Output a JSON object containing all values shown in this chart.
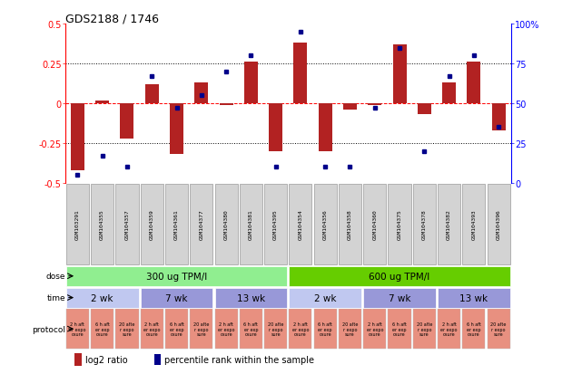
{
  "title": "GDS2188 / 1746",
  "samples": [
    "GSM103291",
    "GSM104355",
    "GSM104357",
    "GSM104359",
    "GSM104361",
    "GSM104377",
    "GSM104380",
    "GSM104381",
    "GSM104395",
    "GSM104354",
    "GSM104356",
    "GSM104358",
    "GSM104360",
    "GSM104375",
    "GSM104378",
    "GSM104382",
    "GSM104393",
    "GSM104396"
  ],
  "log2_ratio": [
    -0.42,
    0.02,
    -0.22,
    0.12,
    -0.32,
    0.13,
    -0.01,
    0.26,
    -0.3,
    0.38,
    -0.3,
    -0.04,
    -0.01,
    0.37,
    -0.07,
    0.13,
    0.26,
    -0.17
  ],
  "percentile": [
    5,
    17,
    10,
    67,
    47,
    55,
    70,
    80,
    10,
    95,
    10,
    10,
    47,
    85,
    20,
    67,
    80,
    35
  ],
  "bar_color": "#b22222",
  "dot_color": "#00008b",
  "ylim_left": [
    -0.5,
    0.5
  ],
  "ylim_right": [
    0,
    100
  ],
  "yticks_left": [
    -0.5,
    -0.25,
    0,
    0.25,
    0.5
  ],
  "yticks_right": [
    0,
    25,
    50,
    75,
    100
  ],
  "dose_defs": [
    {
      "start": 0,
      "end": 9,
      "label": "300 ug TPM/l",
      "color": "#90ee90"
    },
    {
      "start": 9,
      "end": 18,
      "label": "600 ug TPM/l",
      "color": "#66cd00"
    }
  ],
  "time_defs": [
    {
      "start": 0,
      "end": 3,
      "label": "2 wk",
      "color": "#c0c8f0"
    },
    {
      "start": 3,
      "end": 6,
      "label": "7 wk",
      "color": "#9898d8"
    },
    {
      "start": 6,
      "end": 9,
      "label": "13 wk",
      "color": "#9898d8"
    },
    {
      "start": 9,
      "end": 12,
      "label": "2 wk",
      "color": "#c0c8f0"
    },
    {
      "start": 12,
      "end": 15,
      "label": "7 wk",
      "color": "#9898d8"
    },
    {
      "start": 15,
      "end": 18,
      "label": "13 wk",
      "color": "#9898d8"
    }
  ],
  "prot_labels": [
    "2 h aft\ner expo\nosure",
    "6 h aft\ner exp\nosure",
    "20 afte\nr expo\nsure"
  ],
  "prot_color": "#e89080",
  "sample_bg": "#d3d3d3",
  "bg_color": "#ffffff"
}
